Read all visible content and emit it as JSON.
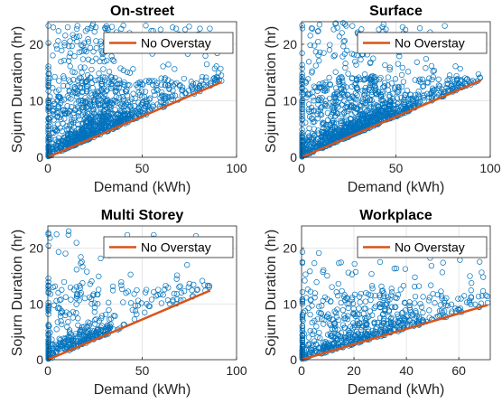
{
  "chart_data": [
    {
      "type": "scatter",
      "title": "On-street",
      "xlabel": "Demand (kWh)",
      "ylabel": "Sojurn Duration (hr)",
      "xlim": [
        0,
        100
      ],
      "ylim": [
        0,
        24
      ],
      "xticks": [
        "0",
        "50",
        "100"
      ],
      "xtick_values": [
        0,
        50,
        100
      ],
      "yticks": [
        "0",
        "10",
        "20"
      ],
      "ytick_values": [
        0,
        10,
        20
      ],
      "grid": true,
      "legend": {
        "label": "No Overstay",
        "placement": "top-right"
      },
      "line": {
        "name": "No Overstay",
        "x": [
          0,
          92
        ],
        "y": [
          0,
          13.3
        ],
        "color": "#D95319"
      },
      "scatter": {
        "color": "#0072BD",
        "marker": "circle"
      },
      "approx_point_cloud": {
        "x_center": 22,
        "x_spread": 16,
        "x_max": 92,
        "y_max": 23.8,
        "count": 1100
      }
    },
    {
      "type": "scatter",
      "title": "Surface",
      "xlabel": "Demand (kWh)",
      "ylabel": "Sojurn Duration (hr)",
      "xlim": [
        0,
        100
      ],
      "ylim": [
        0,
        24
      ],
      "xticks": [
        "0",
        "50",
        "100"
      ],
      "xtick_values": [
        0,
        50,
        100
      ],
      "yticks": [
        "0",
        "10",
        "20"
      ],
      "ytick_values": [
        0,
        10,
        20
      ],
      "grid": true,
      "legend": {
        "label": "No Overstay",
        "placement": "top-right"
      },
      "line": {
        "name": "No Overstay",
        "x": [
          0,
          95
        ],
        "y": [
          0,
          13.6
        ],
        "color": "#D95319"
      },
      "scatter": {
        "color": "#0072BD",
        "marker": "circle"
      },
      "approx_point_cloud": {
        "x_center": 25,
        "x_spread": 18,
        "x_max": 95,
        "y_max": 23.8,
        "count": 1200
      }
    },
    {
      "type": "scatter",
      "title": "Multi Storey",
      "xlabel": "Demand (kWh)",
      "ylabel": "Sojurn Duration (hr)",
      "xlim": [
        0,
        100
      ],
      "ylim": [
        0,
        24
      ],
      "xticks": [
        "0",
        "50",
        "100"
      ],
      "xtick_values": [
        0,
        50,
        100
      ],
      "yticks": [
        "0",
        "10",
        "20"
      ],
      "ytick_values": [
        0,
        10,
        20
      ],
      "grid": true,
      "legend": {
        "label": "No Overstay",
        "placement": "top-right"
      },
      "line": {
        "name": "No Overstay",
        "x": [
          0,
          86
        ],
        "y": [
          0,
          12.4
        ],
        "color": "#D95319"
      },
      "scatter": {
        "color": "#0072BD",
        "marker": "circle"
      },
      "approx_point_cloud": {
        "x_center": 12,
        "x_spread": 14,
        "x_max": 86,
        "y_max": 23.5,
        "count": 420
      }
    },
    {
      "type": "scatter",
      "title": "Workplace",
      "xlabel": "Demand (kWh)",
      "ylabel": "Sojurn Duration (hr)",
      "xlim": [
        0,
        72
      ],
      "ylim": [
        0,
        24
      ],
      "xticks": [
        "0",
        "20",
        "40",
        "60"
      ],
      "xtick_values": [
        0,
        20,
        40,
        60
      ],
      "yticks": [
        "0",
        "10",
        "20"
      ],
      "ytick_values": [
        0,
        10,
        20
      ],
      "grid": true,
      "legend": {
        "label": "No Overstay",
        "placement": "top-right"
      },
      "line": {
        "name": "No Overstay",
        "x": [
          0,
          71
        ],
        "y": [
          0,
          9.8
        ],
        "color": "#D95319"
      },
      "scatter": {
        "color": "#0072BD",
        "marker": "circle"
      },
      "approx_point_cloud": {
        "x_center": 18,
        "x_spread": 16,
        "x_max": 71,
        "y_max": 19.5,
        "count": 650
      }
    }
  ]
}
